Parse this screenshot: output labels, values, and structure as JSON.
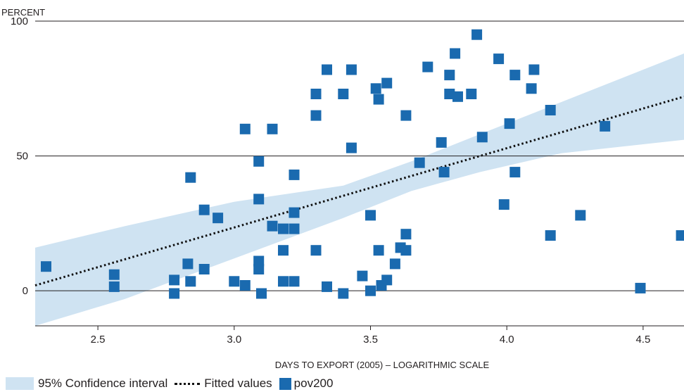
{
  "chart_data": {
    "type": "scatter",
    "ylabel": "PERCENT",
    "xlabel": "DAYS TO EXPORT (2005) – LOGARITHMIC SCALE",
    "xlim": [
      2.27,
      4.65
    ],
    "ylim": [
      -13,
      100
    ],
    "x_ticks": [
      2.5,
      3.0,
      3.5,
      4.0,
      4.5
    ],
    "x_tick_labels": [
      "2.5",
      "3.0",
      "3.5",
      "4.0",
      "4.5"
    ],
    "y_ticks": [
      0,
      50,
      100
    ],
    "y_tick_labels": [
      "0",
      "50",
      "100"
    ],
    "grid": "horizontal",
    "legend_position": "bottom-left",
    "colors": {
      "points": "#1a6aaf",
      "confidence_band": "#cfe3f2",
      "fitted_line": "#111111"
    },
    "fitted_line": {
      "x": [
        2.27,
        4.65
      ],
      "y": [
        2,
        72
      ]
    },
    "confidence_band": {
      "x": [
        2.27,
        2.6,
        3.0,
        3.4,
        3.65,
        3.9,
        4.2,
        4.65
      ],
      "lower": [
        -13,
        -3,
        12,
        27,
        37,
        44,
        51,
        56
      ],
      "upper": [
        16,
        24,
        33,
        39,
        48,
        58,
        70,
        88
      ]
    },
    "series": [
      {
        "name": "pov200",
        "points": [
          [
            2.31,
            9
          ],
          [
            2.56,
            6
          ],
          [
            2.56,
            1.5
          ],
          [
            2.78,
            4
          ],
          [
            2.78,
            -1
          ],
          [
            2.83,
            10
          ],
          [
            2.84,
            42
          ],
          [
            2.84,
            3.5
          ],
          [
            2.89,
            30
          ],
          [
            2.89,
            8
          ],
          [
            2.94,
            27
          ],
          [
            3.0,
            3.5
          ],
          [
            3.04,
            60
          ],
          [
            3.04,
            2
          ],
          [
            3.09,
            48
          ],
          [
            3.09,
            34
          ],
          [
            3.09,
            11
          ],
          [
            3.09,
            8
          ],
          [
            3.1,
            -1
          ],
          [
            3.14,
            60
          ],
          [
            3.14,
            24
          ],
          [
            3.18,
            23
          ],
          [
            3.18,
            15
          ],
          [
            3.18,
            3.5
          ],
          [
            3.22,
            43
          ],
          [
            3.22,
            29
          ],
          [
            3.22,
            23
          ],
          [
            3.22,
            3.5
          ],
          [
            3.3,
            73
          ],
          [
            3.3,
            65
          ],
          [
            3.3,
            15
          ],
          [
            3.34,
            82
          ],
          [
            3.34,
            1.5
          ],
          [
            3.4,
            73
          ],
          [
            3.4,
            -1
          ],
          [
            3.43,
            82
          ],
          [
            3.43,
            53
          ],
          [
            3.47,
            5.5
          ],
          [
            3.5,
            28
          ],
          [
            3.5,
            0
          ],
          [
            3.52,
            75
          ],
          [
            3.53,
            71
          ],
          [
            3.53,
            15
          ],
          [
            3.54,
            2
          ],
          [
            3.56,
            77
          ],
          [
            3.56,
            4
          ],
          [
            3.59,
            10
          ],
          [
            3.61,
            16
          ],
          [
            3.63,
            65
          ],
          [
            3.63,
            21
          ],
          [
            3.63,
            15
          ],
          [
            3.68,
            47.5
          ],
          [
            3.71,
            83
          ],
          [
            3.76,
            55
          ],
          [
            3.77,
            44
          ],
          [
            3.79,
            80
          ],
          [
            3.79,
            73
          ],
          [
            3.81,
            88
          ],
          [
            3.82,
            72
          ],
          [
            3.87,
            73
          ],
          [
            3.89,
            95
          ],
          [
            3.91,
            57
          ],
          [
            3.97,
            86
          ],
          [
            3.99,
            32
          ],
          [
            4.01,
            62
          ],
          [
            4.03,
            80
          ],
          [
            4.03,
            44
          ],
          [
            4.09,
            75
          ],
          [
            4.1,
            82
          ],
          [
            4.16,
            67
          ],
          [
            4.16,
            20.5
          ],
          [
            4.27,
            28
          ],
          [
            4.36,
            61
          ],
          [
            4.49,
            1
          ],
          [
            4.64,
            20.5
          ]
        ]
      }
    ]
  },
  "legend": {
    "ci_label": "95% Confidence interval",
    "fit_label": "Fitted values",
    "points_label": "pov200"
  }
}
